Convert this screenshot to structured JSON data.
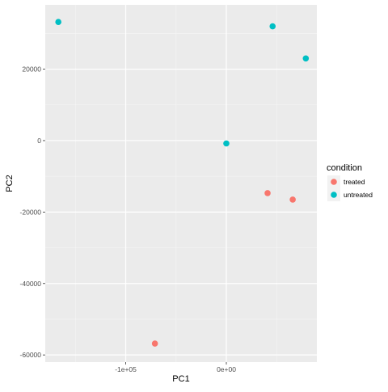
{
  "chart_data": {
    "type": "scatter",
    "title": "",
    "xlabel": "PC1",
    "ylabel": "PC2",
    "xlim": [
      -180000,
      90000
    ],
    "ylim": [
      -62000,
      38000
    ],
    "x_ticks": [
      {
        "value": -100000,
        "label": "-1e+05"
      },
      {
        "value": 0,
        "label": "0e+00"
      }
    ],
    "y_ticks": [
      {
        "value": -60000,
        "label": "-60000"
      },
      {
        "value": -40000,
        "label": "-40000"
      },
      {
        "value": -20000,
        "label": "-20000"
      },
      {
        "value": 0,
        "label": "0"
      },
      {
        "value": 20000,
        "label": "20000"
      }
    ],
    "grid": true,
    "legend_position": "right",
    "legend_title": "condition",
    "series": [
      {
        "name": "treated",
        "color": "#F8766D",
        "points": [
          {
            "x": -71000,
            "y": -56800
          },
          {
            "x": 41000,
            "y": -14700
          },
          {
            "x": 66000,
            "y": -16500
          }
        ]
      },
      {
        "name": "untreated",
        "color": "#00BFC4",
        "points": [
          {
            "x": -167000,
            "y": 33200
          },
          {
            "x": 0,
            "y": -800
          },
          {
            "x": 46000,
            "y": 32000
          },
          {
            "x": 79000,
            "y": 23000
          }
        ]
      }
    ]
  }
}
